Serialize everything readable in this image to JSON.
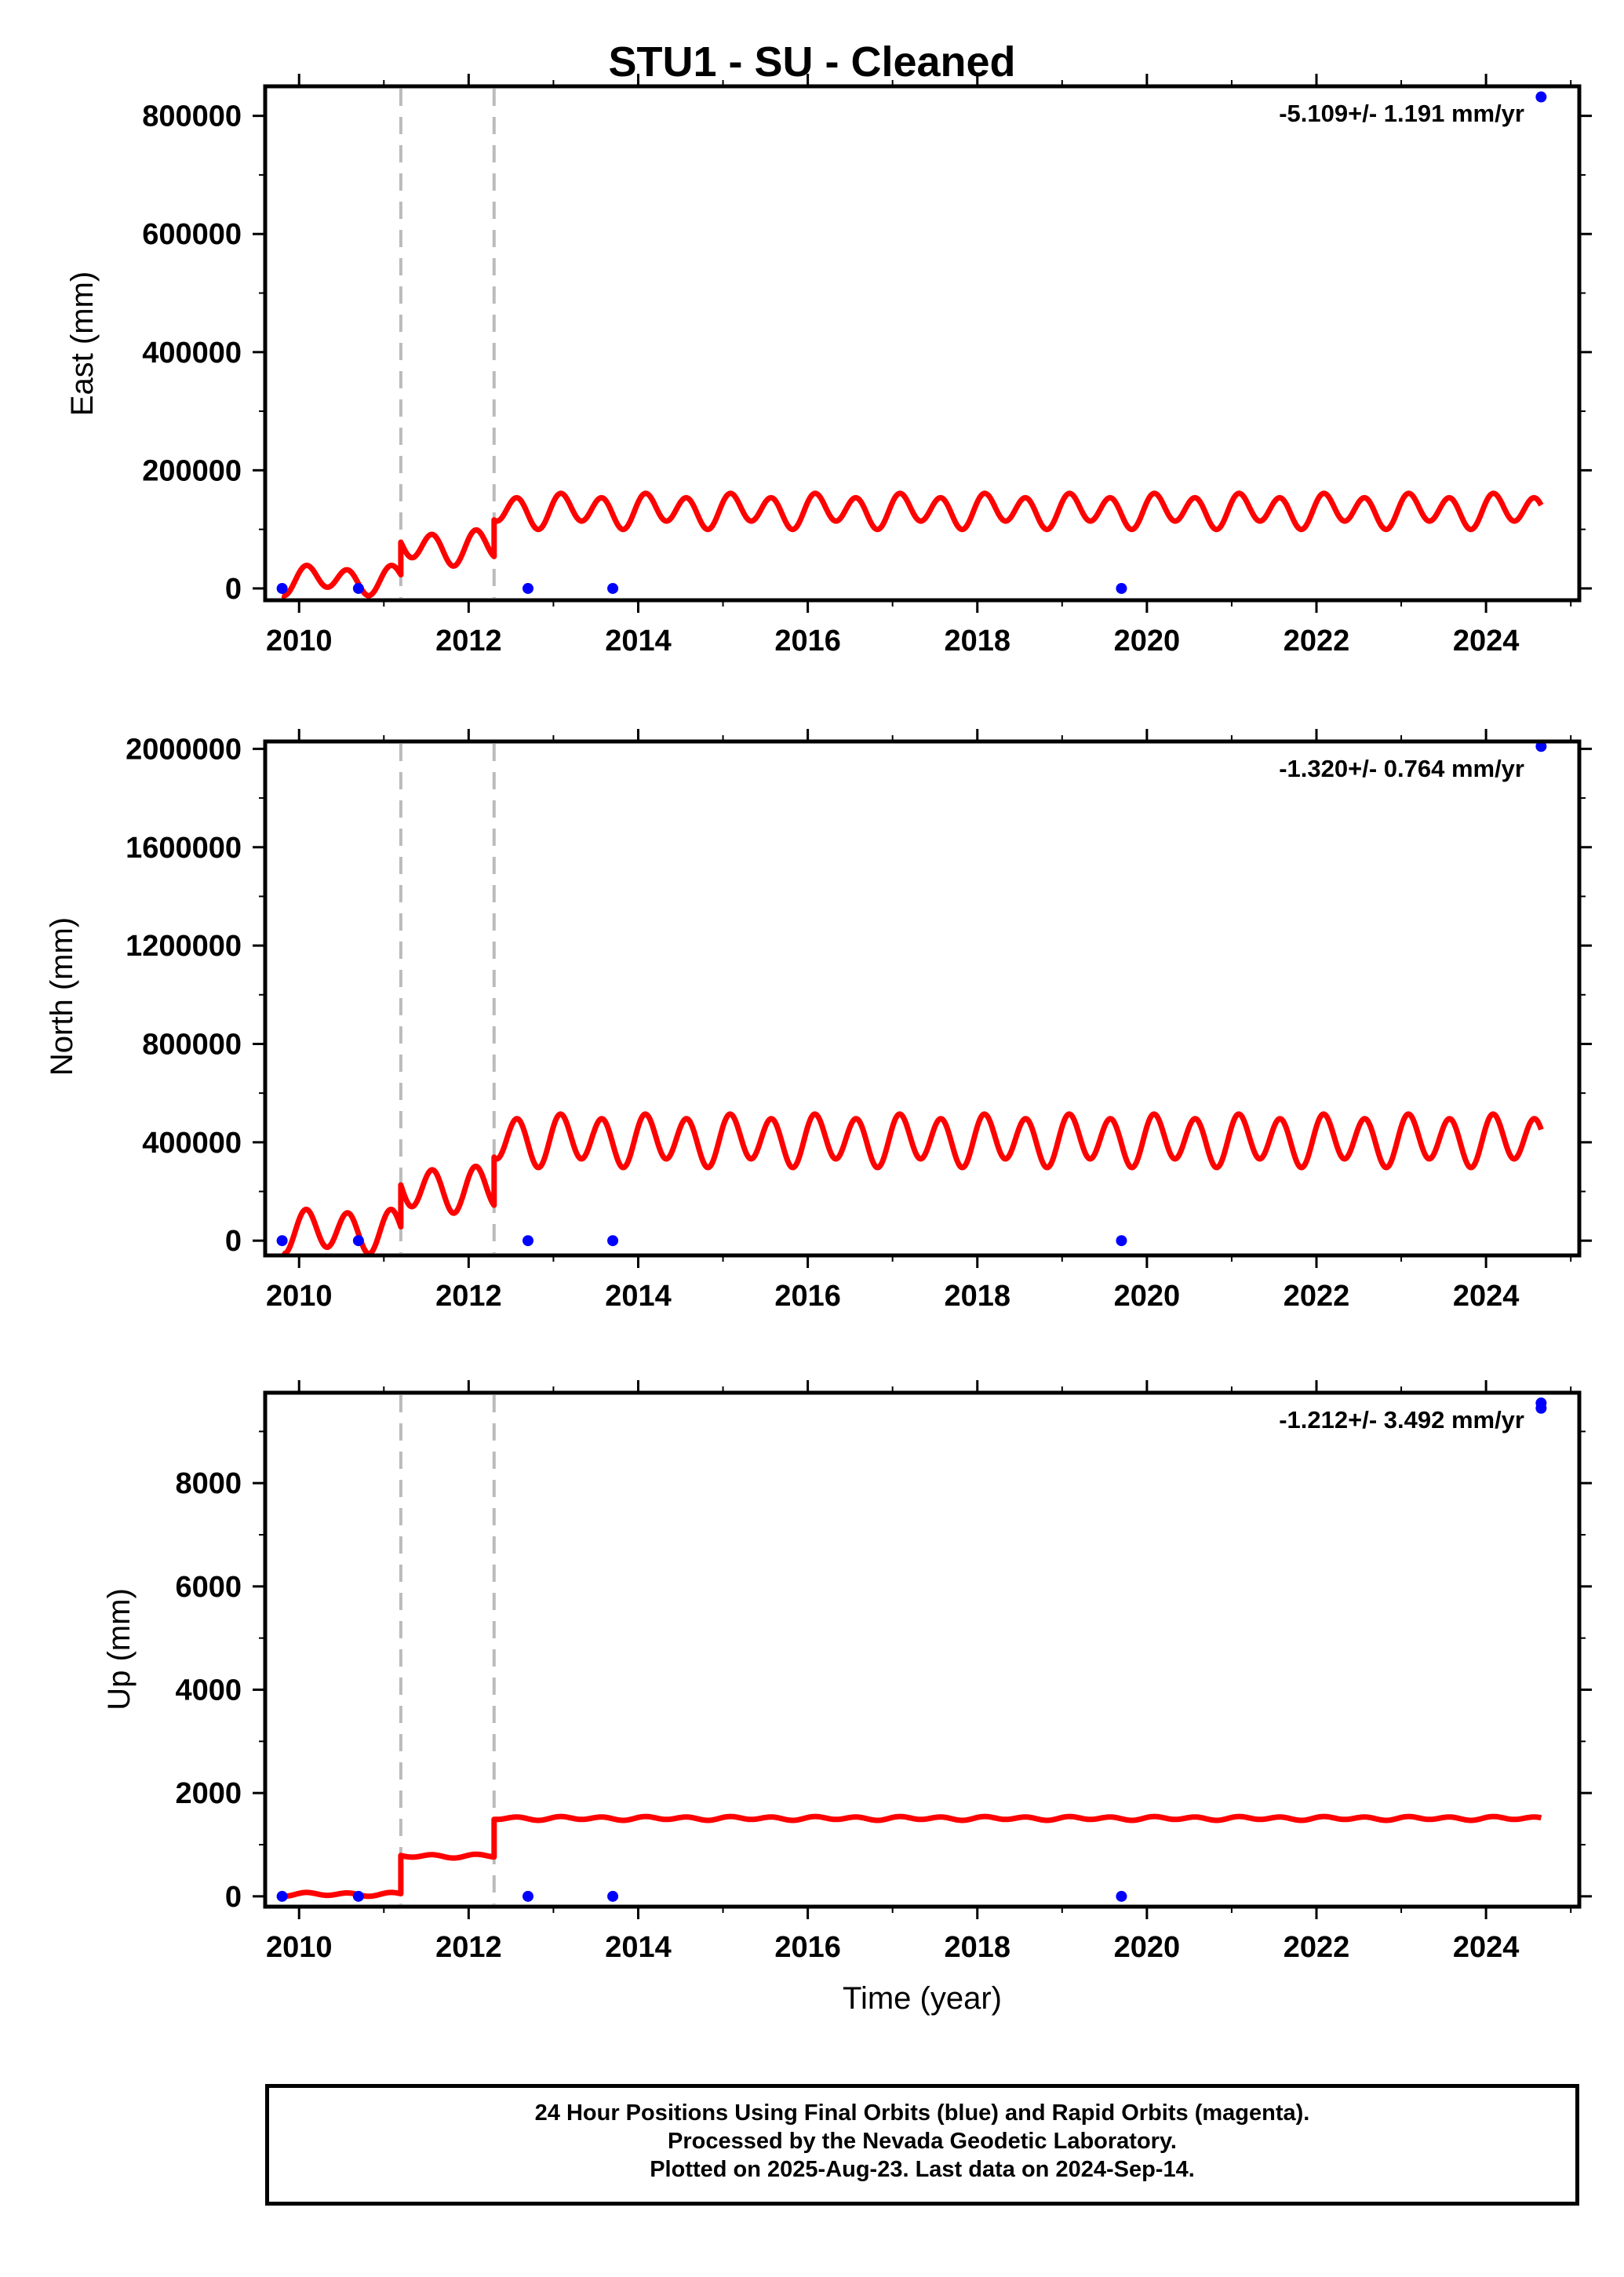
{
  "title": "STU1  - SU - Cleaned",
  "footer": {
    "line1": "24 Hour Positions Using Final Orbits (blue) and Rapid Orbits (magenta).",
    "line2": "Processed by the Nevada Geodetic Laboratory.",
    "line3": "Plotted on 2025-Aug-23. Last data on 2024-Sep-14."
  },
  "colors": {
    "model": "#ff0000",
    "final_orbits": "#0000ff",
    "offset_lines": "#bbbbbb",
    "frame": "#000000"
  },
  "chart_data": [
    {
      "type": "scatter",
      "ylabel": "East (mm)",
      "xlabel": "",
      "rate_label": "-5.109+/- 1.191 mm/yr",
      "xlim": [
        2009.6,
        2025.1
      ],
      "ylim": [
        -20000,
        850000
      ],
      "x_ticks": [
        2010,
        2012,
        2014,
        2016,
        2018,
        2020,
        2022,
        2024
      ],
      "y_ticks": [
        0,
        200000,
        400000,
        600000,
        800000
      ],
      "y_tick_labels": [
        "0",
        "200000",
        "400000",
        "600000",
        "800000"
      ],
      "offsets": [
        2011.2,
        2012.3
      ],
      "points": [
        [
          2009.8,
          0
        ],
        [
          2010.7,
          0
        ],
        [
          2012.7,
          0
        ],
        [
          2013.7,
          0
        ],
        [
          2019.7,
          0
        ],
        [
          2024.65,
          832000
        ]
      ],
      "model": {
        "x_start": 2009.8,
        "x_end": 2024.65,
        "segments": [
          {
            "x_from": 2009.8,
            "x_to": 2011.2,
            "base": 15000,
            "annual": 8000,
            "semiannual": 20000
          },
          {
            "x_from": 2011.2,
            "x_to": 2012.3,
            "base": 70000,
            "annual": 8000,
            "semiannual": 25000
          },
          {
            "x_from": 2012.3,
            "x_to": 2024.65,
            "base": 132000,
            "annual": 8000,
            "semiannual": 25000
          }
        ]
      }
    },
    {
      "type": "scatter",
      "ylabel": "North (mm)",
      "xlabel": "",
      "rate_label": "-1.320+/- 0.764 mm/yr",
      "xlim": [
        2009.6,
        2025.1
      ],
      "ylim": [
        -60000,
        2030000
      ],
      "x_ticks": [
        2010,
        2012,
        2014,
        2016,
        2018,
        2020,
        2022,
        2024
      ],
      "y_ticks": [
        0,
        400000,
        800000,
        1200000,
        1600000,
        2000000
      ],
      "y_tick_labels": [
        "0",
        "400000",
        "800000",
        "1200000",
        "1600000",
        "2000000"
      ],
      "offsets": [
        2011.2,
        2012.3
      ],
      "points": [
        [
          2009.8,
          0
        ],
        [
          2010.7,
          0
        ],
        [
          2012.7,
          0
        ],
        [
          2013.7,
          0
        ],
        [
          2019.7,
          0
        ],
        [
          2024.65,
          2010000
        ]
      ],
      "model": {
        "x_start": 2009.8,
        "x_end": 2024.65,
        "segments": [
          {
            "x_from": 2009.8,
            "x_to": 2011.2,
            "base": 40000,
            "annual": 15000,
            "semiannual": 80000
          },
          {
            "x_from": 2011.2,
            "x_to": 2012.3,
            "base": 210000,
            "annual": 15000,
            "semiannual": 85000
          },
          {
            "x_from": 2012.3,
            "x_to": 2024.65,
            "base": 410000,
            "annual": 20000,
            "semiannual": 95000
          }
        ]
      }
    },
    {
      "type": "scatter",
      "ylabel": "Up (mm)",
      "xlabel": "Time (year)",
      "rate_label": "-1.212+/- 3.492 mm/yr",
      "xlim": [
        2009.6,
        2025.1
      ],
      "ylim": [
        -200,
        9750
      ],
      "x_ticks": [
        2010,
        2012,
        2014,
        2016,
        2018,
        2020,
        2022,
        2024
      ],
      "y_ticks": [
        0,
        2000,
        4000,
        6000,
        8000
      ],
      "y_tick_labels": [
        "0",
        "2000",
        "4000",
        "6000",
        "8000"
      ],
      "offsets": [
        2011.2,
        2012.3
      ],
      "points": [
        [
          2009.8,
          0
        ],
        [
          2010.7,
          0
        ],
        [
          2012.7,
          0
        ],
        [
          2013.7,
          0
        ],
        [
          2019.7,
          0
        ],
        [
          2024.65,
          9450
        ],
        [
          2024.65,
          9550
        ]
      ],
      "model": {
        "x_start": 2009.8,
        "x_end": 2024.65,
        "segments": [
          {
            "x_from": 2009.8,
            "x_to": 2011.2,
            "base": 40,
            "annual": 10,
            "semiannual": 30
          },
          {
            "x_from": 2011.2,
            "x_to": 2012.3,
            "base": 780,
            "annual": 10,
            "semiannual": 30
          },
          {
            "x_from": 2012.3,
            "x_to": 2024.65,
            "base": 1510,
            "annual": 10,
            "semiannual": 30
          }
        ]
      }
    }
  ]
}
